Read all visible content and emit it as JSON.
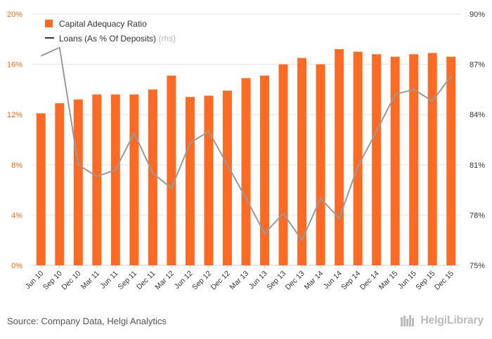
{
  "chart_data": {
    "type": "bar+line",
    "categories": [
      "Jun 10",
      "Sep 10",
      "Dec 10",
      "Mar 11",
      "Jun 11",
      "Sep 11",
      "Dec 11",
      "Mar 12",
      "Jun 12",
      "Sep 12",
      "Dec 12",
      "Mar 13",
      "Jun 13",
      "Sep 13",
      "Dec 13",
      "Mar 14",
      "Jun 14",
      "Sep 14",
      "Dec 14",
      "Mar 15",
      "Jun 15",
      "Sep 15",
      "Dec 15"
    ],
    "series": [
      {
        "name": "Capital Adequacy Ratio",
        "type": "bar",
        "axis": "left",
        "color": "#ff6b24",
        "values": [
          12.1,
          12.9,
          13.2,
          13.6,
          13.6,
          13.6,
          14.0,
          15.1,
          13.4,
          13.5,
          13.9,
          14.9,
          15.1,
          16.0,
          16.5,
          16.0,
          17.2,
          17.0,
          16.8,
          16.6,
          16.8,
          16.9,
          16.6
        ]
      },
      {
        "name": "Loans (As % Of Deposits)",
        "name_suffix": "(rhs)",
        "type": "line",
        "axis": "right",
        "color": "#999999",
        "values": [
          87.5,
          88.0,
          81.0,
          80.3,
          80.7,
          82.9,
          80.5,
          79.6,
          82.3,
          83.0,
          81.0,
          79.0,
          76.9,
          78.1,
          76.5,
          79.0,
          77.8,
          80.9,
          83.0,
          85.2,
          85.5,
          84.8,
          86.3
        ]
      }
    ],
    "left_axis": {
      "ylim": [
        0,
        20
      ],
      "ticks": [
        "0%",
        "4%",
        "8%",
        "12%",
        "16%",
        "20%"
      ],
      "color": "#ff6b1a"
    },
    "right_axis": {
      "ylim": [
        75,
        90
      ],
      "ticks": [
        "75%",
        "78%",
        "81%",
        "84%",
        "87%",
        "90%"
      ]
    },
    "legend_position": "top-left",
    "grid": true
  },
  "footer": {
    "source": "Source: Company Data, Helgi Analytics",
    "logo_text": "HelgiLibrary"
  }
}
